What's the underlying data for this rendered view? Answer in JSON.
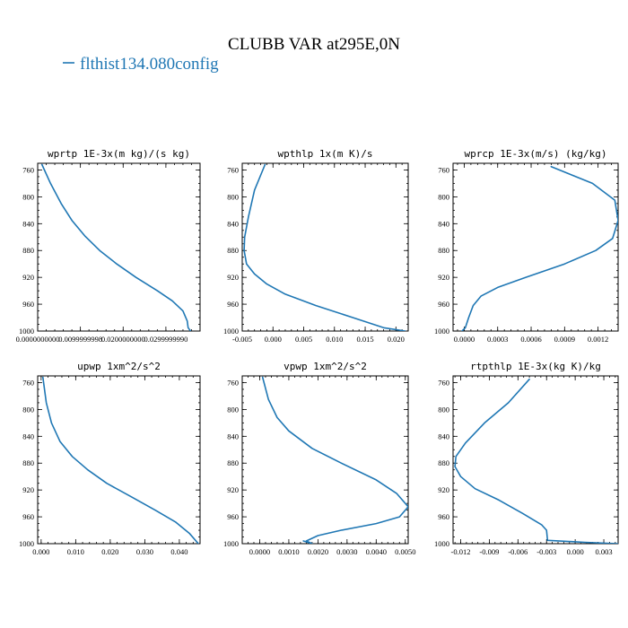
{
  "title": "CLUBB VAR at295E,0N",
  "legend": {
    "label": "flthist134.080config",
    "color": "#1f77b4"
  },
  "chart_data": [
    {
      "type": "line",
      "title": "wprtp  1E-3x(m kg)/(s kg)",
      "xlim": [
        0.0,
        0.038
      ],
      "ylim": [
        750,
        1000
      ],
      "x_ticks": [
        0.0,
        0.01,
        0.02,
        0.03
      ],
      "x_tick_labels": [
        "0.0000000000",
        "0.0099999998",
        "0.0200000000",
        "0.0299999990"
      ],
      "y_ticks": [
        760,
        800,
        840,
        880,
        920,
        960,
        1000
      ],
      "y_tick_labels": [
        "760",
        "800",
        "840",
        "880",
        "920",
        "960",
        "1000"
      ],
      "series": [
        {
          "color": "#1f77b4",
          "x": [
            0.001,
            0.003,
            0.0055,
            0.008,
            0.011,
            0.0145,
            0.0185,
            0.023,
            0.028,
            0.0315,
            0.034,
            0.035,
            0.0352,
            0.0358
          ],
          "y": [
            752,
            780,
            810,
            835,
            858,
            880,
            900,
            920,
            940,
            955,
            970,
            985,
            995,
            1000
          ]
        }
      ]
    },
    {
      "type": "line",
      "title": "wpthlp  1x(m K)/s",
      "xlim": [
        -0.005,
        0.022
      ],
      "ylim": [
        750,
        1000
      ],
      "x_ticks": [
        -0.005,
        0.0,
        0.005,
        0.01,
        0.015,
        0.02
      ],
      "x_tick_labels": [
        "-0.005",
        "0.000",
        "0.005",
        "0.010",
        "0.015",
        "0.020"
      ],
      "y_ticks": [
        760,
        800,
        840,
        880,
        920,
        960,
        1000
      ],
      "y_tick_labels": [
        "760",
        "800",
        "840",
        "880",
        "920",
        "960",
        "1000"
      ],
      "series": [
        {
          "color": "#1f77b4",
          "x": [
            -0.0013,
            -0.003,
            -0.004,
            -0.0046,
            -0.0047,
            -0.0043,
            -0.003,
            -0.001,
            0.002,
            0.007,
            0.013,
            0.018,
            0.0215
          ],
          "y": [
            752,
            790,
            830,
            860,
            880,
            900,
            915,
            930,
            945,
            962,
            980,
            995,
            1000
          ]
        }
      ]
    },
    {
      "type": "line",
      "title": "wprcp  1E-3x(m/s) (kg/kg)",
      "xlim": [
        -0.0001,
        0.00138
      ],
      "ylim": [
        750,
        1000
      ],
      "x_ticks": [
        0.0,
        0.0003,
        0.0006,
        0.0009,
        0.0012
      ],
      "x_tick_labels": [
        "0.0000",
        "0.0003",
        "0.0006",
        "0.0009",
        "0.0012"
      ],
      "y_ticks": [
        760,
        800,
        840,
        880,
        920,
        960,
        1000
      ],
      "y_tick_labels": [
        "760",
        "800",
        "840",
        "880",
        "920",
        "960",
        "1000"
      ],
      "series": [
        {
          "color": "#1f77b4",
          "x": [
            0.00078,
            0.00115,
            0.00135,
            0.00138,
            0.00133,
            0.00118,
            0.0009,
            0.00055,
            0.0003,
            0.00015,
            8e-05,
            4e-05,
            1e-05,
            -2e-05
          ],
          "y": [
            755,
            780,
            805,
            835,
            862,
            880,
            900,
            920,
            935,
            948,
            962,
            980,
            995,
            1000
          ]
        }
      ]
    },
    {
      "type": "line",
      "title": "upwp  1xm^2/s^2",
      "xlim": [
        -0.001,
        0.046
      ],
      "ylim": [
        750,
        1000
      ],
      "x_ticks": [
        0.0,
        0.01,
        0.02,
        0.03,
        0.04
      ],
      "x_tick_labels": [
        "0.000",
        "0.010",
        "0.020",
        "0.030",
        "0.040"
      ],
      "y_ticks": [
        760,
        800,
        840,
        880,
        920,
        960,
        1000
      ],
      "y_tick_labels": [
        "760",
        "800",
        "840",
        "880",
        "920",
        "960",
        "1000"
      ],
      "series": [
        {
          "color": "#1f77b4",
          "x": [
            0.0005,
            0.0015,
            0.003,
            0.0055,
            0.009,
            0.0135,
            0.019,
            0.026,
            0.033,
            0.039,
            0.043,
            0.0455
          ],
          "y": [
            752,
            790,
            820,
            848,
            870,
            890,
            910,
            930,
            950,
            968,
            985,
            1000
          ]
        }
      ]
    },
    {
      "type": "line",
      "title": "vpwp  1xm^2/s^2",
      "xlim": [
        -0.0006,
        0.0051
      ],
      "ylim": [
        750,
        1000
      ],
      "x_ticks": [
        0.0,
        0.001,
        0.002,
        0.003,
        0.004,
        0.005
      ],
      "x_tick_labels": [
        "0.0000",
        "0.0010",
        "0.0020",
        "0.0030",
        "0.0040",
        "0.0050"
      ],
      "y_ticks": [
        760,
        800,
        840,
        880,
        920,
        960,
        1000
      ],
      "y_tick_labels": [
        "760",
        "800",
        "840",
        "880",
        "920",
        "960",
        "1000"
      ],
      "series": [
        {
          "color": "#1f77b4",
          "x": [
            0.0001,
            0.0003,
            0.0006,
            0.001,
            0.0018,
            0.0028,
            0.004,
            0.0047,
            0.0051,
            0.0048,
            0.004,
            0.0028,
            0.002,
            0.0016,
            0.0018,
            0.0015
          ],
          "y": [
            752,
            785,
            812,
            832,
            858,
            880,
            905,
            925,
            945,
            960,
            970,
            980,
            988,
            996,
            1000,
            996
          ]
        }
      ]
    },
    {
      "type": "line",
      "title": "rtpthlp  1E-3x(kg K)/kg",
      "xlim": [
        -0.0128,
        0.0045
      ],
      "ylim": [
        750,
        1000
      ],
      "x_ticks": [
        -0.012,
        -0.009,
        -0.006,
        -0.003,
        0.0,
        0.003
      ],
      "x_tick_labels": [
        "-0.012",
        "-0.009",
        "-0.006",
        "-0.003",
        "0.000",
        "0.003"
      ],
      "y_ticks": [
        760,
        800,
        840,
        880,
        920,
        960,
        1000
      ],
      "y_tick_labels": [
        "760",
        "800",
        "840",
        "880",
        "920",
        "960",
        "1000"
      ],
      "series": [
        {
          "color": "#1f77b4",
          "x": [
            -0.0048,
            -0.007,
            -0.0095,
            -0.0115,
            -0.0125,
            -0.0126,
            -0.012,
            -0.0105,
            -0.008,
            -0.0055,
            -0.0035,
            -0.003,
            -0.0029,
            0.001,
            0.0045
          ],
          "y": [
            755,
            790,
            820,
            850,
            870,
            885,
            900,
            918,
            935,
            955,
            972,
            980,
            995,
            998,
            1000
          ]
        }
      ]
    }
  ]
}
